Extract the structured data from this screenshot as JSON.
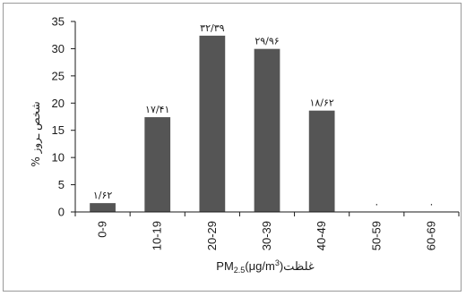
{
  "chart_data": {
    "type": "bar",
    "categories": [
      "0-9",
      "10-19",
      "20-29",
      "30-39",
      "40-49",
      "50-59",
      "60-69"
    ],
    "values": [
      1.62,
      17.41,
      32.39,
      29.96,
      18.62,
      0,
      0
    ],
    "data_labels": [
      "۱/۶۲",
      "۱۷/۴۱",
      "۳۲/۳۹",
      "۲۹/۹۶",
      "۱۸/۶۲",
      "۰",
      "۰"
    ],
    "ylabel": "% شخص ـروز",
    "xlabel_prefix": "PM",
    "xlabel_sub": "2.5",
    "xlabel_units": "(μg/m",
    "xlabel_sup": "3",
    "xlabel_suffix": ")غلظت",
    "ylim": [
      0,
      35
    ],
    "yticks": [
      "0",
      "5",
      "10",
      "15",
      "20",
      "25",
      "30",
      "35"
    ],
    "grid": false,
    "legend": "none",
    "bar_color": "#555555"
  }
}
